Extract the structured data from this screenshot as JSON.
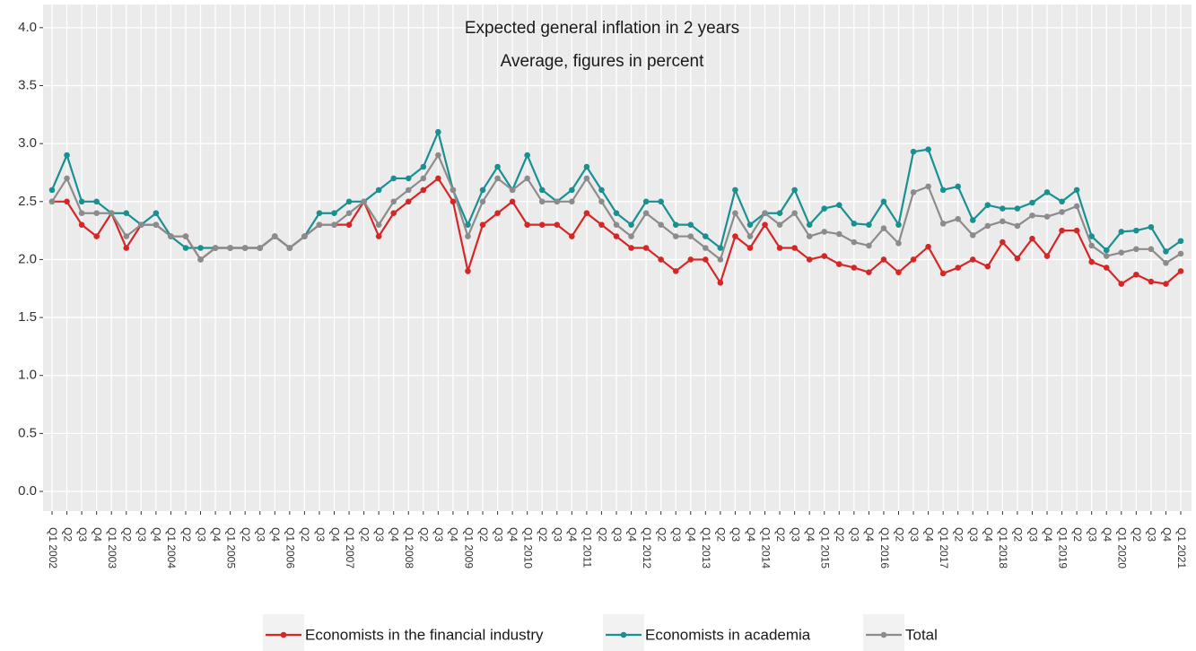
{
  "chart_data": {
    "type": "line",
    "title": "Expected general inflation in 2 years",
    "subtitle": "Average, figures in percent",
    "categories": [
      "Q1 2002",
      "Q2",
      "Q3",
      "Q4",
      "Q1 2003",
      "Q2",
      "Q3",
      "Q4",
      "Q1 2004",
      "Q2",
      "Q3",
      "Q4",
      "Q1 2005",
      "Q2",
      "Q3",
      "Q4",
      "Q1 2006",
      "Q2",
      "Q3",
      "Q4",
      "Q1 2007",
      "Q2",
      "Q3",
      "Q4",
      "Q1 2008",
      "Q2",
      "Q3",
      "Q4",
      "Q1 2009",
      "Q2",
      "Q3",
      "Q4",
      "Q1 2010",
      "Q2",
      "Q3",
      "Q4",
      "Q1 2011",
      "Q2",
      "Q3",
      "Q4",
      "Q1 2012",
      "Q2",
      "Q3",
      "Q4",
      "Q1 2013",
      "Q2",
      "Q3",
      "Q4",
      "Q1 2014",
      "Q2",
      "Q3",
      "Q4",
      "Q1 2015",
      "Q2",
      "Q3",
      "Q4",
      "Q1 2016",
      "Q2",
      "Q3",
      "Q4",
      "Q1 2017",
      "Q2",
      "Q3",
      "Q4",
      "Q1 2018",
      "Q2",
      "Q3",
      "Q4",
      "Q1 2019",
      "Q2",
      "Q3",
      "Q4",
      "Q1 2020",
      "Q2",
      "Q3",
      "Q4",
      "Q1 2021"
    ],
    "series": [
      {
        "name": "Economists in the financial industry",
        "color": "#d62728",
        "values": [
          2.5,
          2.5,
          2.3,
          2.2,
          2.4,
          2.1,
          2.3,
          2.3,
          2.2,
          2.2,
          2.0,
          2.1,
          2.1,
          2.1,
          2.1,
          2.2,
          2.1,
          2.2,
          2.3,
          2.3,
          2.3,
          2.5,
          2.2,
          2.4,
          2.5,
          2.6,
          2.7,
          2.5,
          1.9,
          2.3,
          2.4,
          2.5,
          2.3,
          2.3,
          2.3,
          2.2,
          2.4,
          2.3,
          2.2,
          2.1,
          2.1,
          2.0,
          1.9,
          2.0,
          2.0,
          1.8,
          2.2,
          2.1,
          2.3,
          2.1,
          2.1,
          2.0,
          2.03,
          1.96,
          1.93,
          1.89,
          2.0,
          1.89,
          2.0,
          2.11,
          1.88,
          1.93,
          2.0,
          1.94,
          2.15,
          2.01,
          2.18,
          2.03,
          2.25,
          2.25,
          1.98,
          1.93,
          1.79,
          1.87,
          1.81,
          1.79,
          1.9
        ]
      },
      {
        "name": "Economists in academia",
        "color": "#1a9090",
        "values": [
          2.6,
          2.9,
          2.5,
          2.5,
          2.4,
          2.4,
          2.3,
          2.4,
          2.2,
          2.1,
          2.1,
          2.1,
          2.1,
          2.1,
          2.1,
          2.2,
          2.1,
          2.2,
          2.4,
          2.4,
          2.5,
          2.5,
          2.6,
          2.7,
          2.7,
          2.8,
          3.1,
          2.6,
          2.3,
          2.6,
          2.8,
          2.6,
          2.9,
          2.6,
          2.5,
          2.6,
          2.8,
          2.6,
          2.4,
          2.3,
          2.5,
          2.5,
          2.3,
          2.3,
          2.2,
          2.1,
          2.6,
          2.3,
          2.4,
          2.4,
          2.6,
          2.3,
          2.44,
          2.47,
          2.31,
          2.3,
          2.5,
          2.3,
          2.93,
          2.95,
          2.6,
          2.63,
          2.34,
          2.47,
          2.44,
          2.44,
          2.49,
          2.58,
          2.5,
          2.6,
          2.2,
          2.08,
          2.24,
          2.25,
          2.28,
          2.07,
          2.16
        ]
      },
      {
        "name": "Total",
        "color": "#8c8c8c",
        "values": [
          2.5,
          2.7,
          2.4,
          2.4,
          2.4,
          2.2,
          2.3,
          2.3,
          2.2,
          2.2,
          2.0,
          2.1,
          2.1,
          2.1,
          2.1,
          2.2,
          2.1,
          2.2,
          2.3,
          2.3,
          2.4,
          2.5,
          2.3,
          2.5,
          2.6,
          2.7,
          2.9,
          2.6,
          2.2,
          2.5,
          2.7,
          2.6,
          2.7,
          2.5,
          2.5,
          2.5,
          2.7,
          2.5,
          2.3,
          2.2,
          2.4,
          2.3,
          2.2,
          2.2,
          2.1,
          2.0,
          2.4,
          2.2,
          2.4,
          2.3,
          2.4,
          2.2,
          2.24,
          2.22,
          2.15,
          2.12,
          2.27,
          2.14,
          2.58,
          2.63,
          2.31,
          2.35,
          2.21,
          2.29,
          2.33,
          2.29,
          2.38,
          2.37,
          2.41,
          2.46,
          2.12,
          2.03,
          2.06,
          2.09,
          2.09,
          1.97,
          2.05
        ]
      }
    ],
    "ylim": [
      -0.17,
      4.2
    ],
    "yticks": [
      {
        "value": 0,
        "label": "0.0"
      },
      0.5,
      {
        "value": 1,
        "label": "1.0"
      },
      1.5,
      {
        "value": 2,
        "label": "2.0"
      },
      2.5,
      {
        "value": 3,
        "label": "3.0"
      },
      3.5,
      {
        "value": 4,
        "label": "4.0"
      }
    ],
    "grid": true,
    "legend": "bottom"
  }
}
